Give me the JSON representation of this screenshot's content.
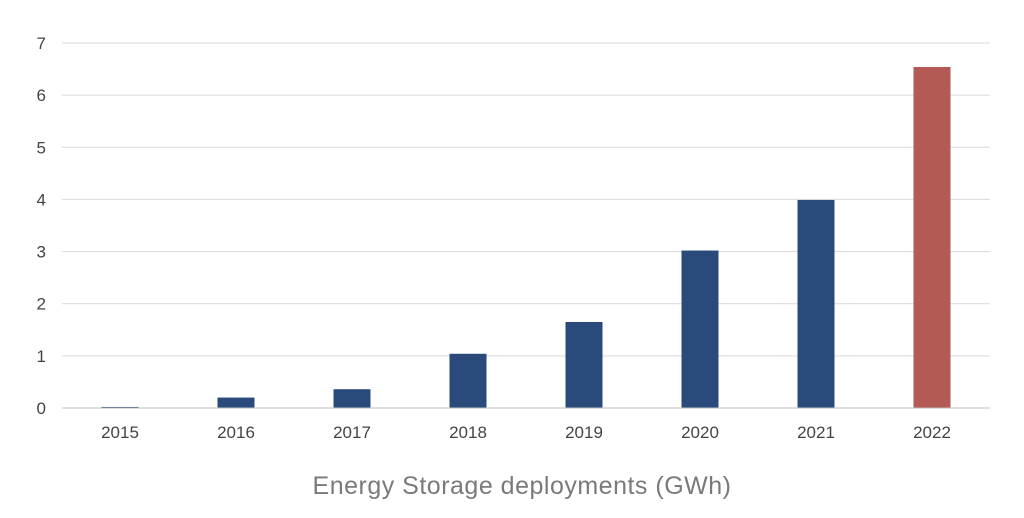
{
  "chart_data": {
    "type": "bar",
    "title": "",
    "xlabel": "Energy Storage deployments (GWh)",
    "ylabel": "",
    "categories": [
      "2015",
      "2016",
      "2017",
      "2018",
      "2019",
      "2020",
      "2021",
      "2022"
    ],
    "values": [
      0.02,
      0.2,
      0.36,
      1.04,
      1.65,
      3.02,
      3.99,
      6.54
    ],
    "ylim": [
      0,
      7
    ],
    "yticks": [
      "0",
      "1",
      "2",
      "3",
      "4",
      "5",
      "6",
      "7"
    ],
    "grid": true,
    "legend": "none",
    "colors": {
      "bar": "#2a4a7b",
      "highlight": "#b35a55",
      "highlight_category": "2022"
    }
  }
}
